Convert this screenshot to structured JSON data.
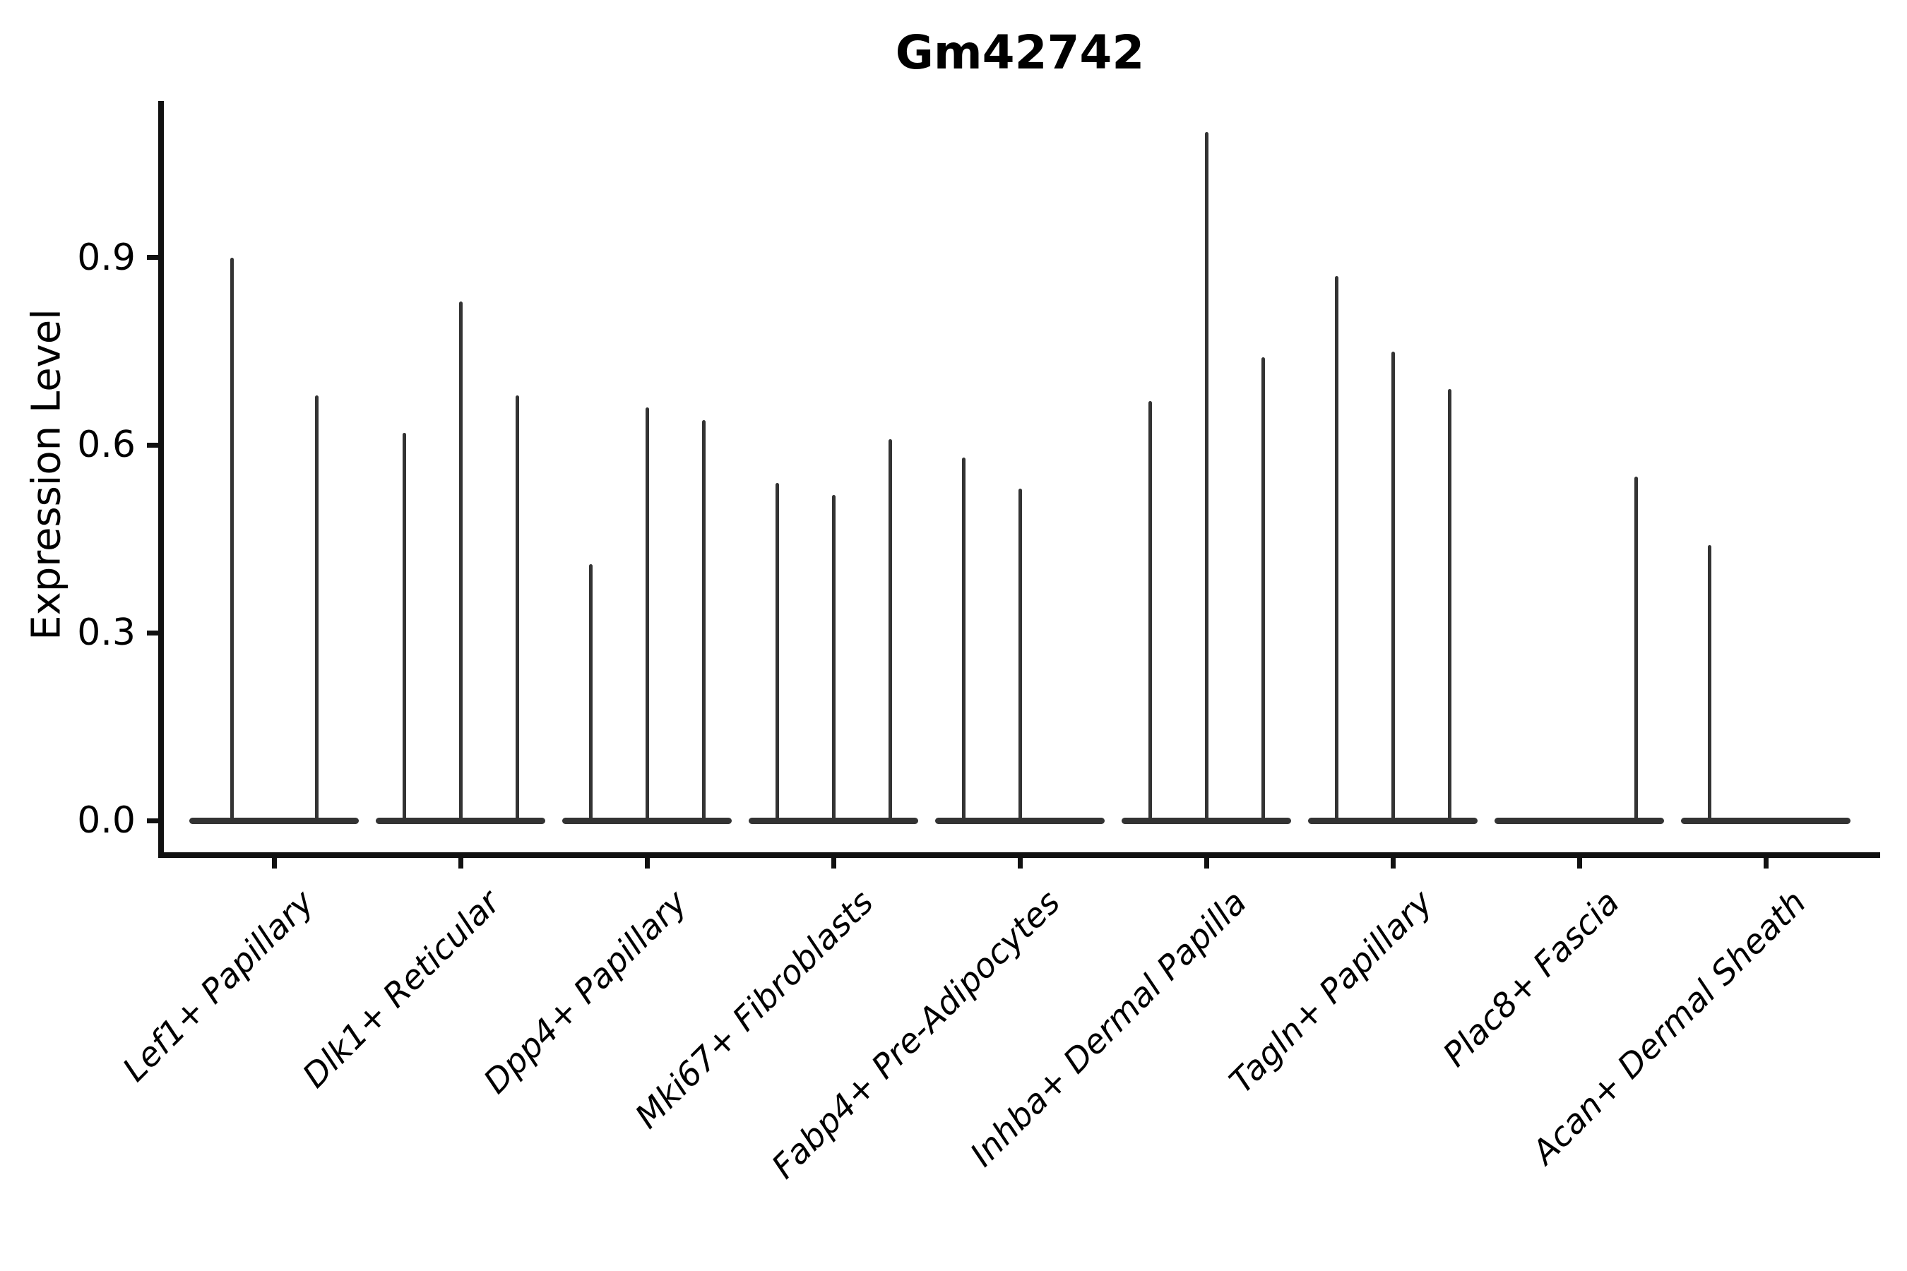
{
  "figure": {
    "title": "Gm42742",
    "y_axis": {
      "label": "Expression Level",
      "tick_labels": [
        "0.0",
        "0.3",
        "0.6",
        "0.9"
      ]
    }
  },
  "chart_data": {
    "type": "violin",
    "title": "Gm42742",
    "xlabel": "",
    "ylabel": "Expression Level",
    "yticks": [
      0.0,
      0.3,
      0.6,
      0.9
    ],
    "ytick_labels": [
      "0.0",
      "0.3",
      "0.6",
      "0.9"
    ],
    "ylim": [
      -0.07,
      1.15
    ],
    "grid": false,
    "legend": "none",
    "description": "Violin plot of expression level per fibroblast subtype; violins are collapsed flat at 0 with thin spikes reaching the maximum expression value. Several categories contain 2-3 dodged sub-violins; max=0 means a fully flat violin.",
    "categories": [
      "Lef1+ Papillary",
      "Dlk1+ Reticular",
      "Dpp4+ Papillary",
      "Mki67+ Fibroblasts",
      "Fabp4+ Pre-Adipocytes",
      "Inhba+ Dermal Papilla",
      "Tagln+ Papillary",
      "Plac8+ Fascia",
      "Acan+ Dermal Sheath"
    ],
    "violins": [
      {
        "category": "Lef1+ Papillary",
        "spikes": [
          {
            "dx": -60,
            "max": 0.9
          },
          {
            "dx": 60,
            "max": 0.68
          }
        ]
      },
      {
        "category": "Dlk1+ Reticular",
        "spikes": [
          {
            "dx": -80,
            "max": 0.62
          },
          {
            "dx": 0,
            "max": 0.83
          },
          {
            "dx": 80,
            "max": 0.68
          }
        ]
      },
      {
        "category": "Dpp4+ Papillary",
        "spikes": [
          {
            "dx": -80,
            "max": 0.41
          },
          {
            "dx": 0,
            "max": 0.66
          },
          {
            "dx": 80,
            "max": 0.64
          }
        ]
      },
      {
        "category": "Mki67+ Fibroblasts",
        "spikes": [
          {
            "dx": -80,
            "max": 0.54
          },
          {
            "dx": 0,
            "max": 0.52
          },
          {
            "dx": 80,
            "max": 0.61
          }
        ]
      },
      {
        "category": "Fabp4+ Pre-Adipocytes",
        "spikes": [
          {
            "dx": -80,
            "max": 0.58
          },
          {
            "dx": 0,
            "max": 0.53
          },
          {
            "dx": 80,
            "max": 0
          }
        ]
      },
      {
        "category": "Inhba+ Dermal Papilla",
        "spikes": [
          {
            "dx": -80,
            "max": 0.67
          },
          {
            "dx": 0,
            "max": 1.1
          },
          {
            "dx": 80,
            "max": 0.74
          }
        ]
      },
      {
        "category": "Tagln+ Papillary",
        "spikes": [
          {
            "dx": -80,
            "max": 0.87
          },
          {
            "dx": 0,
            "max": 0.75
          },
          {
            "dx": 80,
            "max": 0.69
          }
        ]
      },
      {
        "category": "Plac8+ Fascia",
        "spikes": [
          {
            "dx": -80,
            "max": 0
          },
          {
            "dx": 0,
            "max": 0
          },
          {
            "dx": 80,
            "max": 0.55
          }
        ]
      },
      {
        "category": "Acan+ Dermal Sheath",
        "spikes": [
          {
            "dx": -80,
            "max": 0.44
          },
          {
            "dx": 0,
            "max": 0
          },
          {
            "dx": 80,
            "max": 0
          }
        ]
      }
    ],
    "colors": {
      "violin": "#333333",
      "axis": "#111111",
      "text": "#000000",
      "background": "#ffffff"
    }
  }
}
